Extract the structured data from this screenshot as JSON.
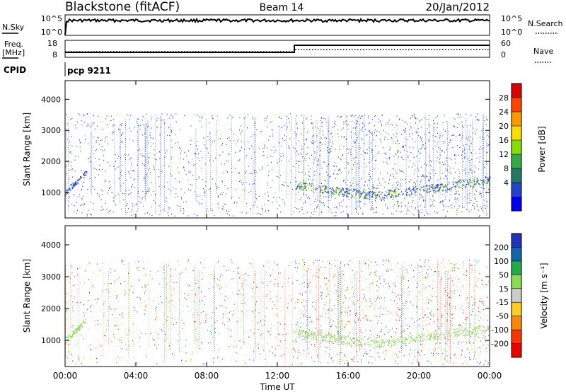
{
  "header": {
    "station": "Blackstone (fitACF)",
    "beam": "Beam 14",
    "date": "20/Jan/2012"
  },
  "noise_panel": {
    "left_label": "N.Sky",
    "left_ticks": [
      "10^5",
      "10^0"
    ],
    "right_label": "N.Search",
    "right_ticks": [
      "10^5",
      "10^0"
    ]
  },
  "freq_panel": {
    "left_label_line1": "Freq.",
    "left_label_line2": "[MHz]",
    "left_ticks": [
      "18",
      "8"
    ],
    "right_label": "Nave",
    "right_ticks": [
      "60",
      "0"
    ]
  },
  "cpid_panel": {
    "label": "CPID",
    "program": "pcp 9211"
  },
  "chart_data": [
    {
      "type": "heatmap",
      "name": "power",
      "ylabel": "Slant Range [km]",
      "yticks": [
        "4000",
        "3000",
        "2000",
        "1000"
      ],
      "ylim": [
        180,
        4600
      ],
      "colorbar_label": "Power [dB]",
      "colorbar_ticks": [
        "28",
        "24",
        "20",
        "16",
        "12",
        "8",
        "4"
      ],
      "colorbar_colors": [
        "#dd0000",
        "#ff4400",
        "#ff9900",
        "#ffdd00",
        "#88dd00",
        "#33aa44",
        "#227766",
        "#2244cc",
        "#0000ee"
      ],
      "scatter_band_km": [
        250,
        3550
      ],
      "echo_band_start_hour": 13.0
    },
    {
      "type": "heatmap",
      "name": "velocity",
      "ylabel": "Slant Range [km]",
      "yticks": [
        "4000",
        "3000",
        "2000",
        "1000"
      ],
      "ylim": [
        180,
        4600
      ],
      "colorbar_label": "Velocity [m s⁻¹]",
      "colorbar_ticks": [
        "200",
        "100",
        "50",
        "15",
        "-15",
        "-50",
        "-100",
        "-200"
      ],
      "colorbar_colors": [
        "#2233bb",
        "#1166aa",
        "#22aa44",
        "#88dd55",
        "#cccccc",
        "#ffcc22",
        "#ff8800",
        "#ff3300",
        "#ee0000"
      ],
      "scatter_band_km": [
        250,
        3550
      ],
      "echo_band_start_hour": 13.0
    }
  ],
  "xaxis": {
    "label": "Time UT",
    "ticks": [
      "00:00",
      "04:00",
      "08:00",
      "12:00",
      "16:00",
      "20:00",
      "00:00"
    ],
    "hours": [
      0,
      4,
      8,
      12,
      16,
      20,
      24
    ]
  }
}
